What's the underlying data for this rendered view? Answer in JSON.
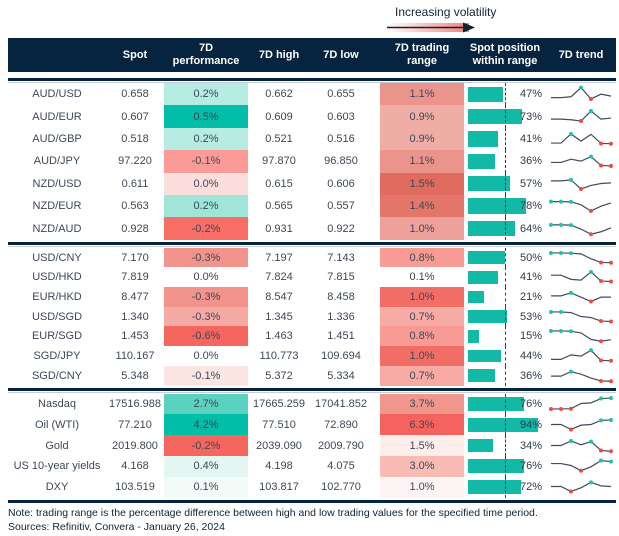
{
  "legend": {
    "label": "Increasing volatility",
    "gradient_start": "#ffffff",
    "gradient_end": "#f0837b",
    "arrow_color": "#0d2438"
  },
  "header": {
    "columns": [
      "",
      "Spot",
      "7D performance",
      "7D high",
      "7D low",
      "7D trading range",
      "Spot position within range",
      "7D trend"
    ]
  },
  "colors": {
    "header_bg": "#06233f",
    "header_text": "#ffffff",
    "body_text": "#3c4857",
    "position_bar": "#12b9a6",
    "spark_line": "#3d4c5f",
    "dot_high": "#1fc1ae",
    "dot_low": "#ee4b40",
    "rule_navy": "#06233f",
    "rule_gray": "#c7cdd3"
  },
  "blocks": [
    {
      "rows": [
        {
          "name": "AUD/USD",
          "spot": "0.658",
          "perf": "0.2%",
          "perf_color": "#b6ece2",
          "high": "0.662",
          "low": "0.655",
          "range": "1.1%",
          "range_color": "#ea948c",
          "position": "47%",
          "position_pct": 47,
          "spark": {
            "points": [
              0.18,
              0.18,
              0.25,
              0.95,
              0.08,
              0.45,
              0.3
            ],
            "high_dots": [
              3
            ],
            "low_dots": [
              4
            ]
          }
        },
        {
          "name": "AUD/EUR",
          "spot": "0.607",
          "perf": "0.5%",
          "perf_color": "#02bda8",
          "high": "0.609",
          "low": "0.603",
          "range": "0.9%",
          "range_color": "#f0ada6",
          "position": "73%",
          "position_pct": 73,
          "spark": {
            "points": [
              0.3,
              0.3,
              0.25,
              0.15,
              0.92,
              0.3,
              0.38
            ],
            "high_dots": [
              4
            ],
            "low_dots": [
              3
            ]
          }
        },
        {
          "name": "AUD/GBP",
          "spot": "0.518",
          "perf": "0.2%",
          "perf_color": "#b6ece2",
          "high": "0.521",
          "low": "0.516",
          "range": "0.9%",
          "range_color": "#f0ada6",
          "position": "41%",
          "position_pct": 41,
          "spark": {
            "points": [
              0.15,
              0.15,
              0.85,
              0.3,
              0.82,
              0.12,
              0.1
            ],
            "high_dots": [
              2
            ],
            "low_dots": [
              5,
              6
            ]
          }
        },
        {
          "name": "AUD/JPY",
          "spot": "97.220",
          "perf": "-0.1%",
          "perf_color": "#fa9b97",
          "high": "97.870",
          "low": "96.850",
          "range": "1.1%",
          "range_color": "#ea948c",
          "position": "36%",
          "position_pct": 36,
          "spark": {
            "points": [
              0.35,
              0.35,
              0.6,
              0.45,
              0.8,
              0.12,
              0.08
            ],
            "high_dots": [
              4
            ],
            "low_dots": [
              5,
              6
            ]
          }
        },
        {
          "name": "NZD/USD",
          "spot": "0.611",
          "perf": "0.0%",
          "perf_color": "#fcdedd",
          "high": "0.615",
          "low": "0.606",
          "range": "1.5%",
          "range_color": "#e26b60",
          "position": "57%",
          "position_pct": 57,
          "spark": {
            "points": [
              0.7,
              0.7,
              0.78,
              0.08,
              0.35,
              0.5,
              0.55
            ],
            "high_dots": [
              2
            ],
            "low_dots": [
              3
            ]
          }
        },
        {
          "name": "NZD/EUR",
          "spot": "0.563",
          "perf": "0.2%",
          "perf_color": "#9fe5d8",
          "high": "0.565",
          "low": "0.557",
          "range": "1.4%",
          "range_color": "#e47569",
          "position": "78%",
          "position_pct": 78,
          "spark": {
            "points": [
              0.8,
              0.8,
              0.78,
              0.55,
              0.08,
              0.45,
              0.7
            ],
            "high_dots": [
              0,
              1,
              2
            ],
            "low_dots": [
              4
            ]
          }
        },
        {
          "name": "NZD/AUD",
          "spot": "0.928",
          "perf": "-0.2%",
          "perf_color": "#f96f68",
          "high": "0.931",
          "low": "0.922",
          "range": "1.0%",
          "range_color": "#eda19a",
          "position": "64%",
          "position_pct": 64,
          "spark": {
            "points": [
              0.78,
              0.78,
              0.76,
              0.45,
              0.06,
              0.25,
              0.55
            ],
            "high_dots": [
              0,
              1,
              2
            ],
            "low_dots": [
              4
            ]
          }
        }
      ]
    },
    {
      "rows": [
        {
          "name": "USD/CNY",
          "spot": "7.170",
          "perf": "-0.3%",
          "perf_color": "#f2948c",
          "high": "7.197",
          "low": "7.143",
          "range": "0.8%",
          "range_color": "#f79b94",
          "position": "50%",
          "position_pct": 50,
          "spark": {
            "points": [
              0.85,
              0.85,
              0.83,
              0.78,
              0.4,
              0.12,
              0.1
            ],
            "high_dots": [
              0,
              1,
              2
            ],
            "low_dots": [
              5,
              6
            ]
          }
        },
        {
          "name": "USD/HKD",
          "spot": "7.819",
          "perf": "0.0%",
          "perf_color": "#ffffff",
          "high": "7.824",
          "low": "7.815",
          "range": "0.1%",
          "range_color": "#ffffff",
          "position": "41%",
          "position_pct": 41,
          "spark": {
            "points": [
              0.6,
              0.6,
              0.28,
              0.22,
              0.85,
              0.15,
              0.12
            ],
            "high_dots": [
              4
            ],
            "low_dots": [
              5,
              6
            ]
          }
        },
        {
          "name": "EUR/HKD",
          "spot": "8.477",
          "perf": "-0.3%",
          "perf_color": "#f2948c",
          "high": "8.547",
          "low": "8.458",
          "range": "1.0%",
          "range_color": "#f26d66",
          "position": "21%",
          "position_pct": 21,
          "spark": {
            "points": [
              0.55,
              0.55,
              0.78,
              0.45,
              0.12,
              0.45,
              0.45
            ],
            "high_dots": [
              2
            ],
            "low_dots": [
              4
            ]
          }
        },
        {
          "name": "USD/SGD",
          "spot": "1.340",
          "perf": "-0.3%",
          "perf_color": "#f5aba3",
          "high": "1.345",
          "low": "1.336",
          "range": "0.7%",
          "range_color": "#f8aaa4",
          "position": "53%",
          "position_pct": 53,
          "spark": {
            "points": [
              0.85,
              0.85,
              0.8,
              0.5,
              0.42,
              0.15,
              0.12
            ],
            "high_dots": [
              0,
              1
            ],
            "low_dots": [
              5,
              6
            ]
          }
        },
        {
          "name": "EUR/SGD",
          "spot": "1.453",
          "perf": "-0.6%",
          "perf_color": "#f4665e",
          "high": "1.463",
          "low": "1.451",
          "range": "0.8%",
          "range_color": "#f79b94",
          "position": "15%",
          "position_pct": 15,
          "spark": {
            "points": [
              0.85,
              0.85,
              0.83,
              0.7,
              0.2,
              0.06,
              0.18
            ],
            "high_dots": [
              0,
              1,
              2
            ],
            "low_dots": [
              5
            ]
          }
        },
        {
          "name": "SGD/JPY",
          "spot": "110.167",
          "perf": "0.0%",
          "perf_color": "#ffffff",
          "high": "110.773",
          "low": "109.694",
          "range": "1.0%",
          "range_color": "#f26d66",
          "position": "44%",
          "position_pct": 44,
          "spark": {
            "points": [
              0.2,
              0.2,
              0.55,
              0.45,
              0.9,
              0.12,
              0.1
            ],
            "high_dots": [
              4
            ],
            "low_dots": [
              5,
              6
            ]
          }
        },
        {
          "name": "SGD/CNY",
          "spot": "5.348",
          "perf": "-0.1%",
          "perf_color": "#fce6e3",
          "high": "5.372",
          "low": "5.334",
          "range": "0.7%",
          "range_color": "#f8aaa4",
          "position": "36%",
          "position_pct": 36,
          "spark": {
            "points": [
              0.45,
              0.45,
              0.8,
              0.6,
              0.3,
              0.08,
              0.06
            ],
            "high_dots": [
              2
            ],
            "low_dots": [
              5,
              6
            ]
          }
        }
      ]
    },
    {
      "rows": [
        {
          "name": "Nasdaq",
          "spot": "17516.988",
          "perf": "2.7%",
          "perf_color": "#5bd1c0",
          "high": "17665.259",
          "low": "17041.852",
          "range": "3.7%",
          "range_color": "#f0968b",
          "position": "76%",
          "position_pct": 76,
          "spark": {
            "points": [
              0.08,
              0.08,
              0.1,
              0.5,
              0.55,
              0.88,
              0.92
            ],
            "high_dots": [
              5,
              6
            ],
            "low_dots": [
              0,
              1,
              2
            ]
          }
        },
        {
          "name": "Oil (WTI)",
          "spot": "77.210",
          "perf": "4.2%",
          "perf_color": "#02bda8",
          "high": "77.510",
          "low": "72.890",
          "range": "6.3%",
          "range_color": "#f4635d",
          "position": "94%",
          "position_pct": 94,
          "spark": {
            "points": [
              0.5,
              0.5,
              0.12,
              0.45,
              0.5,
              0.82,
              0.85
            ],
            "high_dots": [
              5,
              6
            ],
            "low_dots": [
              2
            ]
          }
        },
        {
          "name": "Gold",
          "spot": "2019.800",
          "perf": "-0.2%",
          "perf_color": "#f4665e",
          "high": "2039.090",
          "low": "2009.790",
          "range": "1.5%",
          "range_color": "#fdeeec",
          "position": "34%",
          "position_pct": 34,
          "spark": {
            "points": [
              0.5,
              0.5,
              0.85,
              0.55,
              0.8,
              0.12,
              0.06
            ],
            "high_dots": [
              2,
              4
            ],
            "low_dots": [
              5,
              6
            ]
          }
        },
        {
          "name": "US 10-year yields",
          "spot": "4.168",
          "perf": "0.4%",
          "perf_color": "#e3f6f2",
          "high": "4.198",
          "low": "4.075",
          "range": "3.0%",
          "range_color": "#f9bcb5",
          "position": "76%",
          "position_pct": 76,
          "spark": {
            "points": [
              0.65,
              0.65,
              0.5,
              0.1,
              0.4,
              0.88,
              0.8
            ],
            "high_dots": [
              5,
              6
            ],
            "low_dots": [
              3
            ]
          }
        },
        {
          "name": "DXY",
          "spot": "103.519",
          "perf": "0.1%",
          "perf_color": "#f3fbf9",
          "high": "103.817",
          "low": "102.770",
          "range": "1.0%",
          "range_color": "#fdf5f5",
          "position": "72%",
          "position_pct": 72,
          "spark": {
            "points": [
              0.5,
              0.5,
              0.12,
              0.4,
              0.82,
              0.55,
              0.5
            ],
            "high_dots": [
              4
            ],
            "low_dots": [
              2
            ]
          }
        }
      ]
    }
  ],
  "footer": {
    "note": "Note: trading range is the percentage difference between high and low trading values for the specified time period.",
    "sources": "Sources: Refinitiv, Convera - January 26, 2024"
  }
}
